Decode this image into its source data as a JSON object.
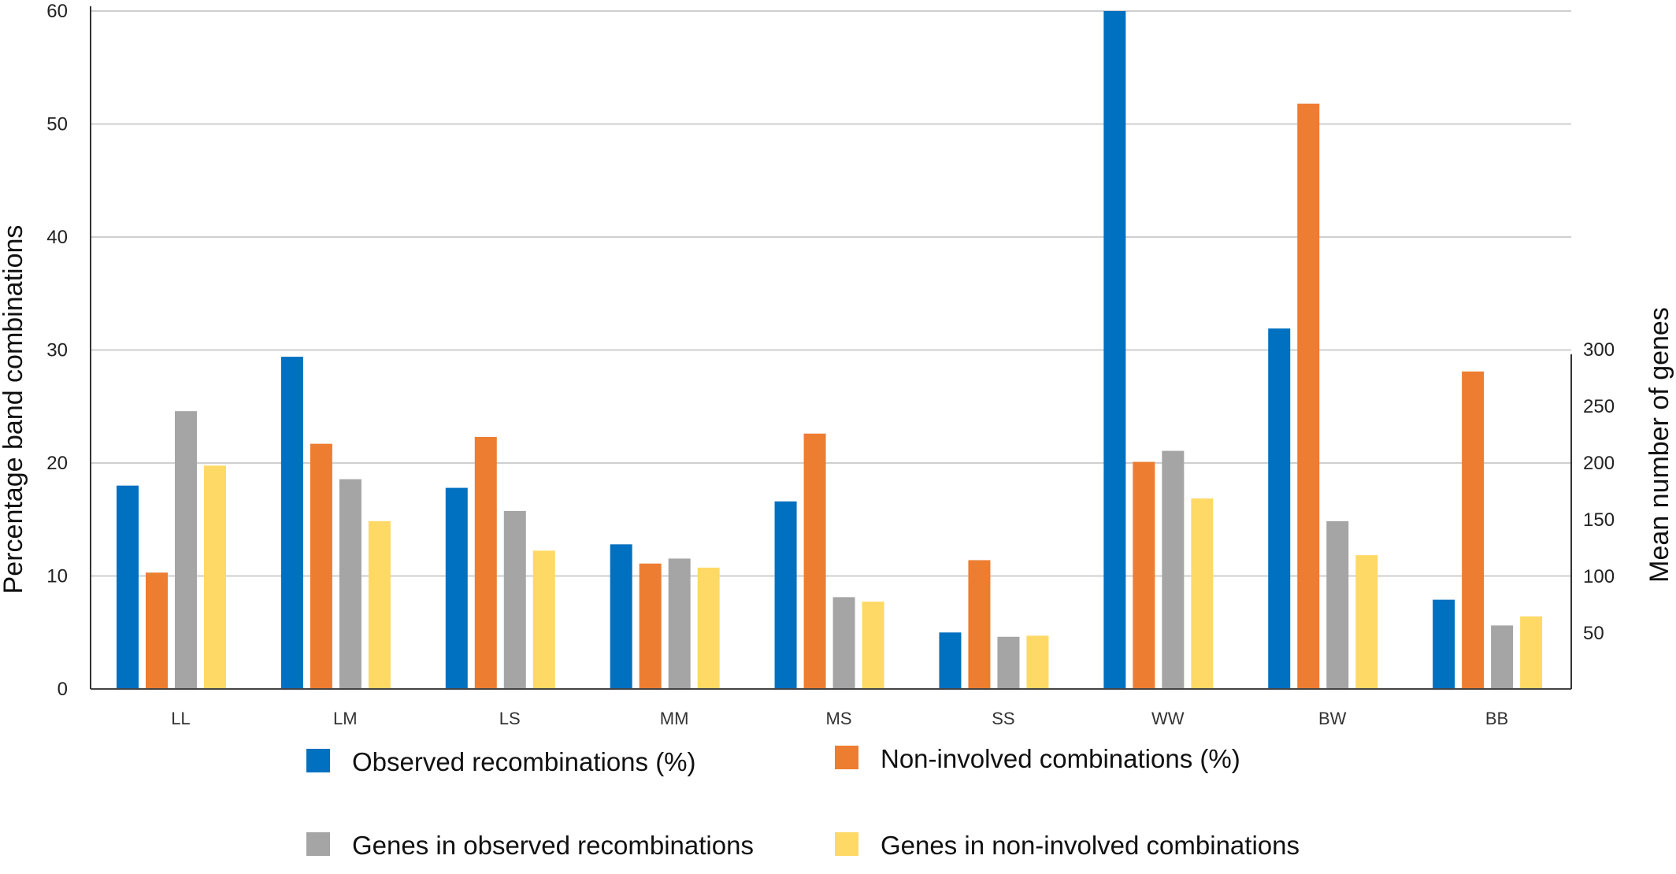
{
  "chart_data": {
    "type": "bar",
    "title": "",
    "categories": [
      "LL",
      "LM",
      "LS",
      "MM",
      "MS",
      "SS",
      "WW",
      "BW",
      "BB"
    ],
    "ylabel": "Percentage band combinations",
    "ylim": [
      0,
      60
    ],
    "yticks": [
      0,
      10,
      20,
      30,
      40,
      50,
      60
    ],
    "y2label": "Mean number of genes",
    "y2ticks": [
      50,
      100,
      150,
      200,
      250,
      300
    ],
    "grid": true,
    "legend_position": "bottom",
    "series": [
      {
        "name": "Observed recombinations (%)",
        "color": "#0070C0",
        "axis": "left",
        "values": [
          18.0,
          29.4,
          17.8,
          12.8,
          16.6,
          5.0,
          60.0,
          31.9,
          7.9
        ]
      },
      {
        "name": "Non-involved combinations (%)",
        "color": "#ED7D31",
        "axis": "left",
        "values": [
          10.3,
          21.7,
          22.3,
          11.1,
          22.6,
          11.4,
          20.1,
          51.8,
          28.1
        ]
      },
      {
        "name": "Genes in observed recombinations",
        "color": "#A5A5A5",
        "axis": "right",
        "values": [
          245,
          185,
          157,
          115,
          81,
          46,
          210,
          148,
          56
        ]
      },
      {
        "name": "Genes in non-involved combinations",
        "color": "#FFD966",
        "axis": "right",
        "values": [
          197,
          148,
          122,
          107,
          77,
          47,
          168,
          118,
          64
        ]
      }
    ]
  }
}
